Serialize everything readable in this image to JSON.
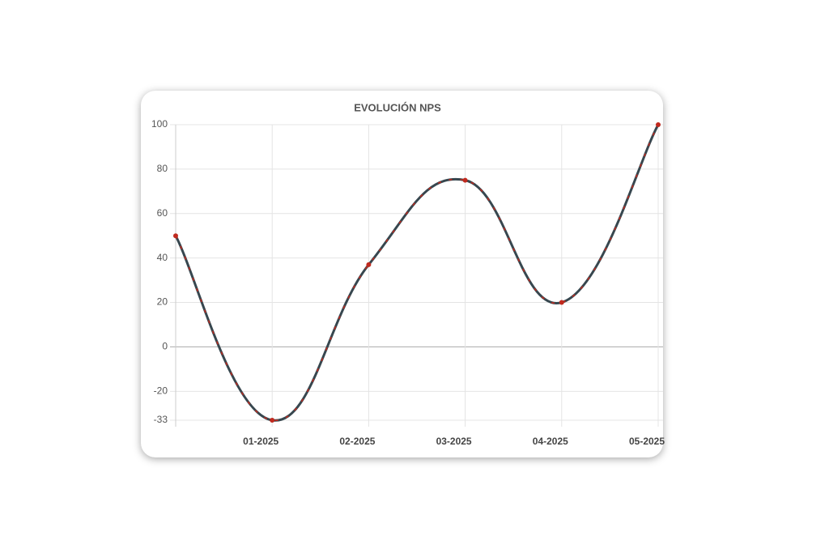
{
  "chart_data": {
    "type": "line",
    "title": "EVOLUCIÓN NPS",
    "categories": [
      null,
      "01-2025",
      "02-2025",
      "03-2025",
      "04-2025",
      "05-2025"
    ],
    "values": [
      50,
      -33,
      37,
      75,
      20,
      100
    ],
    "color": "#37474f",
    "point_color": "#c0291e",
    "ylim": [
      -33,
      100
    ],
    "yticks": [
      -33,
      -20,
      0,
      20,
      40,
      60,
      80,
      100
    ],
    "grid": true
  }
}
